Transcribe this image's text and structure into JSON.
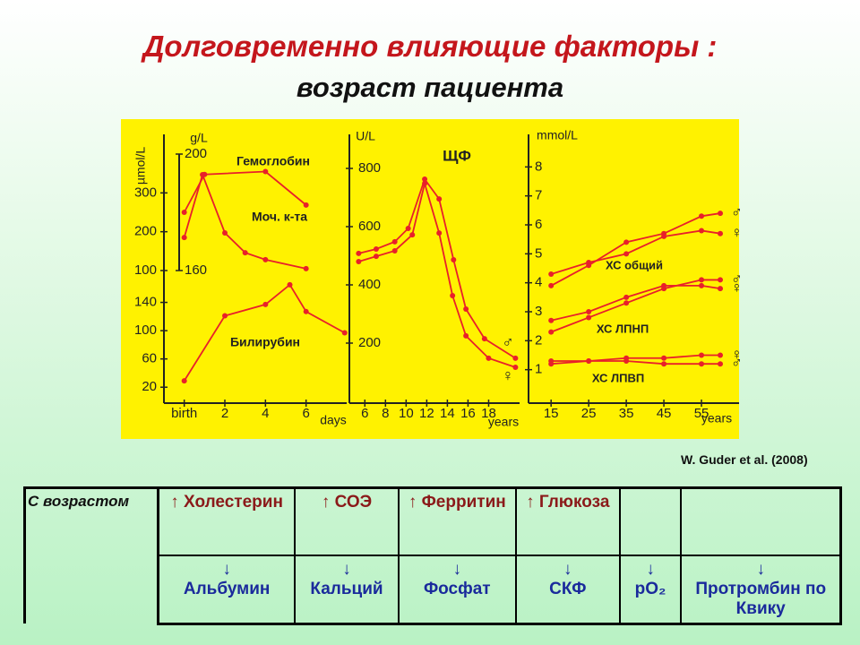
{
  "header": {
    "title": "Долговременно влияющие факторы :",
    "subtitle": "возраст пациента"
  },
  "chart_data": [
    {
      "type": "line",
      "color": "#e8202a",
      "ylabel": "µmol/L",
      "y2label": "g/L",
      "xlim": [
        -1,
        8
      ],
      "ylim": [
        100,
        400
      ],
      "yticks": [
        100,
        200,
        300
      ],
      "y2lim": [
        160,
        200
      ],
      "y2ticks": [
        160,
        200
      ],
      "series": [
        {
          "name": "Гемоглобин",
          "axis": "y2",
          "x": [
            0,
            1,
            4,
            6
          ],
          "values": [
            180,
            193,
            194,
            182.5
          ]
        },
        {
          "name": "Моч. к-та",
          "x": [
            0,
            0.9,
            2,
            3,
            4,
            6
          ],
          "values": [
            185,
            347,
            197,
            146,
            128,
            105
          ]
        }
      ]
    },
    {
      "type": "line",
      "color": "#e8202a",
      "xlabel": "days",
      "xlim": [
        -1,
        8
      ],
      "ylim": [
        0,
        180
      ],
      "yticks": [
        20,
        60,
        100,
        140
      ],
      "xticks": [
        {
          "value": 0,
          "label": "birth"
        },
        2,
        4,
        6
      ],
      "series": [
        {
          "name": "Билирубин",
          "x": [
            0,
            2,
            4,
            5.2,
            6,
            7.9
          ],
          "values": [
            29,
            121,
            137,
            165,
            127,
            97
          ]
        }
      ]
    },
    {
      "type": "line",
      "color": "#e8202a",
      "title": "ЩФ",
      "ylabel": "U/L",
      "xlabel": "years",
      "xlim": [
        4.5,
        21
      ],
      "ylim": [
        0,
        900
      ],
      "yticks": [
        200,
        400,
        600,
        800
      ],
      "xticks": [
        6,
        8,
        10,
        12,
        14,
        16,
        18
      ],
      "series": [
        {
          "name": "♂",
          "x": [
            5.4,
            7.1,
            8.9,
            10.2,
            11.8,
            13.2,
            14.6,
            15.8,
            17.6,
            20.6
          ],
          "values": [
            508,
            523,
            548,
            594,
            763,
            695,
            486,
            317,
            215,
            148
          ]
        },
        {
          "name": "♀",
          "x": [
            5.4,
            7.1,
            8.9,
            10.6,
            11.8,
            13.2,
            14.5,
            15.8,
            18,
            20.6
          ],
          "values": [
            480,
            498,
            517,
            572,
            748,
            578,
            363,
            225,
            148,
            117
          ]
        }
      ]
    },
    {
      "type": "grouped-line",
      "color": "#e8202a",
      "ylabel": "mmol/L",
      "xlabel": "years",
      "xlim": [
        9,
        65
      ],
      "ylim": [
        0,
        9
      ],
      "yticks": [
        1,
        2,
        3,
        4,
        5,
        6,
        7,
        8
      ],
      "xticks": [
        15,
        25,
        35,
        45,
        55
      ],
      "x": [
        15,
        25,
        35,
        45,
        55,
        60
      ],
      "groups": [
        {
          "label": "ХС общий",
          "series": [
            {
              "name": "♂",
              "values": [
                3.9,
                4.6,
                5.4,
                5.7,
                6.3,
                6.4
              ]
            },
            {
              "name": "♀",
              "values": [
                4.3,
                4.7,
                5.0,
                5.6,
                5.8,
                5.7
              ]
            }
          ]
        },
        {
          "label": "ХС ЛПНП",
          "series": [
            {
              "name": "♂",
              "values": [
                2.3,
                2.8,
                3.3,
                3.8,
                4.1,
                4.1
              ]
            },
            {
              "name": "♀",
              "values": [
                2.7,
                3.0,
                3.5,
                3.9,
                3.9,
                3.8
              ]
            }
          ]
        },
        {
          "label": "ХС ЛПВП",
          "series": [
            {
              "name": "♀",
              "values": [
                1.3,
                1.3,
                1.4,
                1.4,
                1.5,
                1.5
              ]
            },
            {
              "name": "♂",
              "values": [
                1.2,
                1.3,
                1.3,
                1.2,
                1.2,
                1.2
              ]
            }
          ]
        }
      ]
    }
  ],
  "citation": "W. Guder et al.  (2008)",
  "table": {
    "row_header": "С возрастом",
    "increase": [
      {
        "arrow": "↑",
        "text": "Холестерин"
      },
      {
        "arrow": "↑",
        "text": "СОЭ"
      },
      {
        "arrow": "↑",
        "text": "Ферритин"
      },
      {
        "arrow": "↑",
        "text": "Глюкоза"
      }
    ],
    "decrease": [
      {
        "arrow": "↓",
        "text": "Альбумин"
      },
      {
        "arrow": "↓",
        "text": "Кальций"
      },
      {
        "arrow": "↓",
        "text": "Фосфат"
      },
      {
        "arrow": "↓",
        "text": "СКФ"
      },
      {
        "arrow": "↓",
        "text": "pO₂"
      },
      {
        "arrow": "↓",
        "text": "Протромбин по Квику"
      }
    ]
  }
}
